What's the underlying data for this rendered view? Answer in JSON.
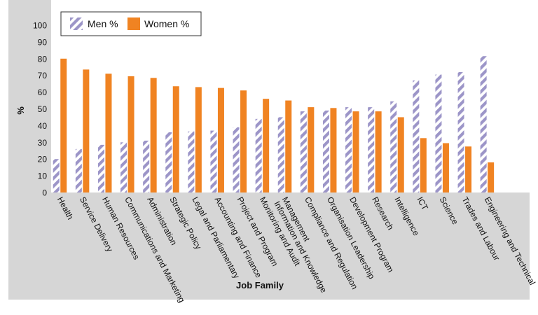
{
  "chart_data": {
    "type": "bar",
    "title": "",
    "xlabel": "Job Family",
    "ylabel": "%",
    "ylim": [
      0,
      100
    ],
    "yticks": [
      0,
      10,
      20,
      30,
      40,
      50,
      60,
      70,
      80,
      90,
      100
    ],
    "grid": false,
    "legend_position": "top-left",
    "categories": [
      "Health",
      "Service Delivery",
      "Human Resources",
      "Communications and Marketing",
      "Administration",
      "Strategic Policy",
      "Legal and Parliamentary",
      "Accounting and Finance",
      "Project and Program",
      "Monitoring and Audit",
      "Information and Knowledge Management",
      "Compliance and Regulation",
      "Organisation Leadership",
      "Development Program",
      "Research",
      "Intelligence",
      "ICT",
      "Science",
      "Trades and Labour",
      "Engineering and Technical"
    ],
    "category_lines": [
      [
        "Health"
      ],
      [
        "Service Delivery"
      ],
      [
        "Human Resources"
      ],
      [
        "Communications and Marketing"
      ],
      [
        "Administration"
      ],
      [
        "Strategic Policy"
      ],
      [
        "Legal and Parliamentary"
      ],
      [
        "Accounting and Finance"
      ],
      [
        "Project and Program"
      ],
      [
        "Monitoring and Audit"
      ],
      [
        "Management",
        "Information and Knowledge"
      ],
      [
        "Compliance and Regulation"
      ],
      [
        "Organisation Leadership"
      ],
      [
        "Development Program"
      ],
      [
        "Research"
      ],
      [
        "Intelligence"
      ],
      [
        "ICT"
      ],
      [
        "Science"
      ],
      [
        "Trades and Labour"
      ],
      [
        "Engineering and Technical"
      ]
    ],
    "series": [
      {
        "name": "Men %",
        "color": "#9c95c8",
        "pattern": "diagonal-hatch",
        "values": [
          20,
          26,
          28.5,
          30,
          31,
          36,
          36.5,
          37,
          39,
          44,
          45,
          48.5,
          49,
          51,
          51,
          54.5,
          67,
          70.5,
          72,
          81.5
        ]
      },
      {
        "name": "Women %",
        "color": "#f08322",
        "pattern": "solid",
        "values": [
          80,
          73.5,
          71,
          69.5,
          68.5,
          63.5,
          63,
          62.5,
          61,
          56,
          55,
          51,
          50.5,
          48.5,
          48.5,
          45,
          32.5,
          29.5,
          27.5,
          18
        ]
      }
    ]
  }
}
